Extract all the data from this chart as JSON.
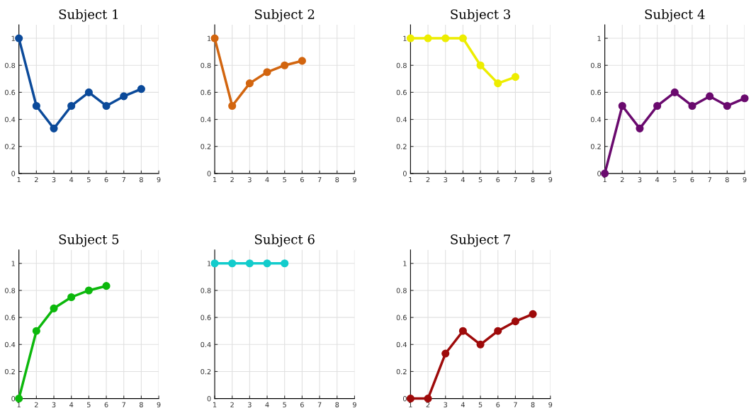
{
  "chart_data": [
    {
      "type": "line",
      "title": "Subject 1",
      "x": [
        1,
        2,
        3,
        4,
        5,
        6,
        7,
        8
      ],
      "series": [
        {
          "color": "#0b4a9a",
          "values": [
            1,
            0.5,
            0.333,
            0.5,
            0.6,
            0.5,
            0.571,
            0.625
          ]
        }
      ],
      "xlim": [
        1,
        9
      ],
      "xticks": [
        1,
        2,
        3,
        4,
        5,
        6,
        7,
        8,
        9
      ],
      "ylim": [
        0,
        1.1
      ],
      "yticks": [
        0,
        0.2,
        0.4,
        0.6,
        0.8,
        1
      ],
      "grid": true,
      "marker": "circle"
    },
    {
      "type": "line",
      "title": "Subject 2",
      "x": [
        1,
        2,
        3,
        4,
        5,
        6
      ],
      "series": [
        {
          "color": "#d2650f",
          "values": [
            1,
            0.5,
            0.667,
            0.75,
            0.8,
            0.833
          ]
        }
      ],
      "xlim": [
        1,
        9
      ],
      "xticks": [
        1,
        2,
        3,
        4,
        5,
        6,
        7,
        8,
        9
      ],
      "ylim": [
        0,
        1.1
      ],
      "yticks": [
        0,
        0.2,
        0.4,
        0.6,
        0.8,
        1
      ],
      "grid": true,
      "marker": "circle"
    },
    {
      "type": "line",
      "title": "Subject 3",
      "x": [
        1,
        2,
        3,
        4,
        5,
        6,
        7
      ],
      "series": [
        {
          "color": "#eded00",
          "values": [
            1,
            1,
            1,
            1,
            0.8,
            0.667,
            0.714
          ]
        }
      ],
      "xlim": [
        1,
        9
      ],
      "xticks": [
        1,
        2,
        3,
        4,
        5,
        6,
        7,
        8,
        9
      ],
      "ylim": [
        0,
        1.1
      ],
      "yticks": [
        0,
        0.2,
        0.4,
        0.6,
        0.8,
        1
      ],
      "grid": true,
      "marker": "circle"
    },
    {
      "type": "line",
      "title": "Subject 4",
      "x": [
        1,
        2,
        3,
        4,
        5,
        6,
        7,
        8,
        9
      ],
      "series": [
        {
          "color": "#6a0a6e",
          "values": [
            0,
            0.5,
            0.333,
            0.5,
            0.6,
            0.5,
            0.571,
            0.5,
            0.556
          ]
        }
      ],
      "xlim": [
        1,
        9
      ],
      "xticks": [
        1,
        2,
        3,
        4,
        5,
        6,
        7,
        8,
        9
      ],
      "ylim": [
        0,
        1.1
      ],
      "yticks": [
        0,
        0.2,
        0.4,
        0.6,
        0.8,
        1
      ],
      "grid": true,
      "marker": "circle"
    },
    {
      "type": "line",
      "title": "Subject 5",
      "x": [
        1,
        2,
        3,
        4,
        5,
        6
      ],
      "series": [
        {
          "color": "#0cb80c",
          "values": [
            0,
            0.5,
            0.667,
            0.75,
            0.8,
            0.833
          ]
        }
      ],
      "xlim": [
        1,
        9
      ],
      "xticks": [
        1,
        2,
        3,
        4,
        5,
        6,
        7,
        8,
        9
      ],
      "ylim": [
        0,
        1.1
      ],
      "yticks": [
        0,
        0.2,
        0.4,
        0.6,
        0.8,
        1
      ],
      "grid": true,
      "marker": "circle"
    },
    {
      "type": "line",
      "title": "Subject 6",
      "x": [
        1,
        2,
        3,
        4,
        5
      ],
      "series": [
        {
          "color": "#12cccc",
          "values": [
            1,
            1,
            1,
            1,
            1
          ]
        }
      ],
      "xlim": [
        1,
        9
      ],
      "xticks": [
        1,
        2,
        3,
        4,
        5,
        6,
        7,
        8,
        9
      ],
      "ylim": [
        0,
        1.1
      ],
      "yticks": [
        0,
        0.2,
        0.4,
        0.6,
        0.8,
        1
      ],
      "grid": true,
      "marker": "circle"
    },
    {
      "type": "line",
      "title": "Subject 7",
      "x": [
        1,
        2,
        3,
        4,
        5,
        6,
        7,
        8
      ],
      "series": [
        {
          "color": "#9e0a0a",
          "values": [
            0,
            0,
            0.333,
            0.5,
            0.4,
            0.5,
            0.571,
            0.625
          ]
        }
      ],
      "xlim": [
        1,
        9
      ],
      "xticks": [
        1,
        2,
        3,
        4,
        5,
        6,
        7,
        8,
        9
      ],
      "ylim": [
        0,
        1.1
      ],
      "yticks": [
        0,
        0.2,
        0.4,
        0.6,
        0.8,
        1
      ],
      "grid": true,
      "marker": "circle"
    }
  ]
}
